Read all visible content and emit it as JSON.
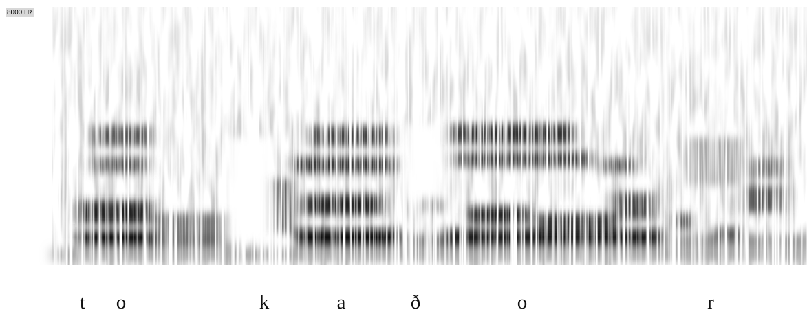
{
  "axis_label": "8000 Hz",
  "segments": [
    "t",
    "o",
    "k",
    "a",
    "ð",
    "o",
    "r"
  ]
}
